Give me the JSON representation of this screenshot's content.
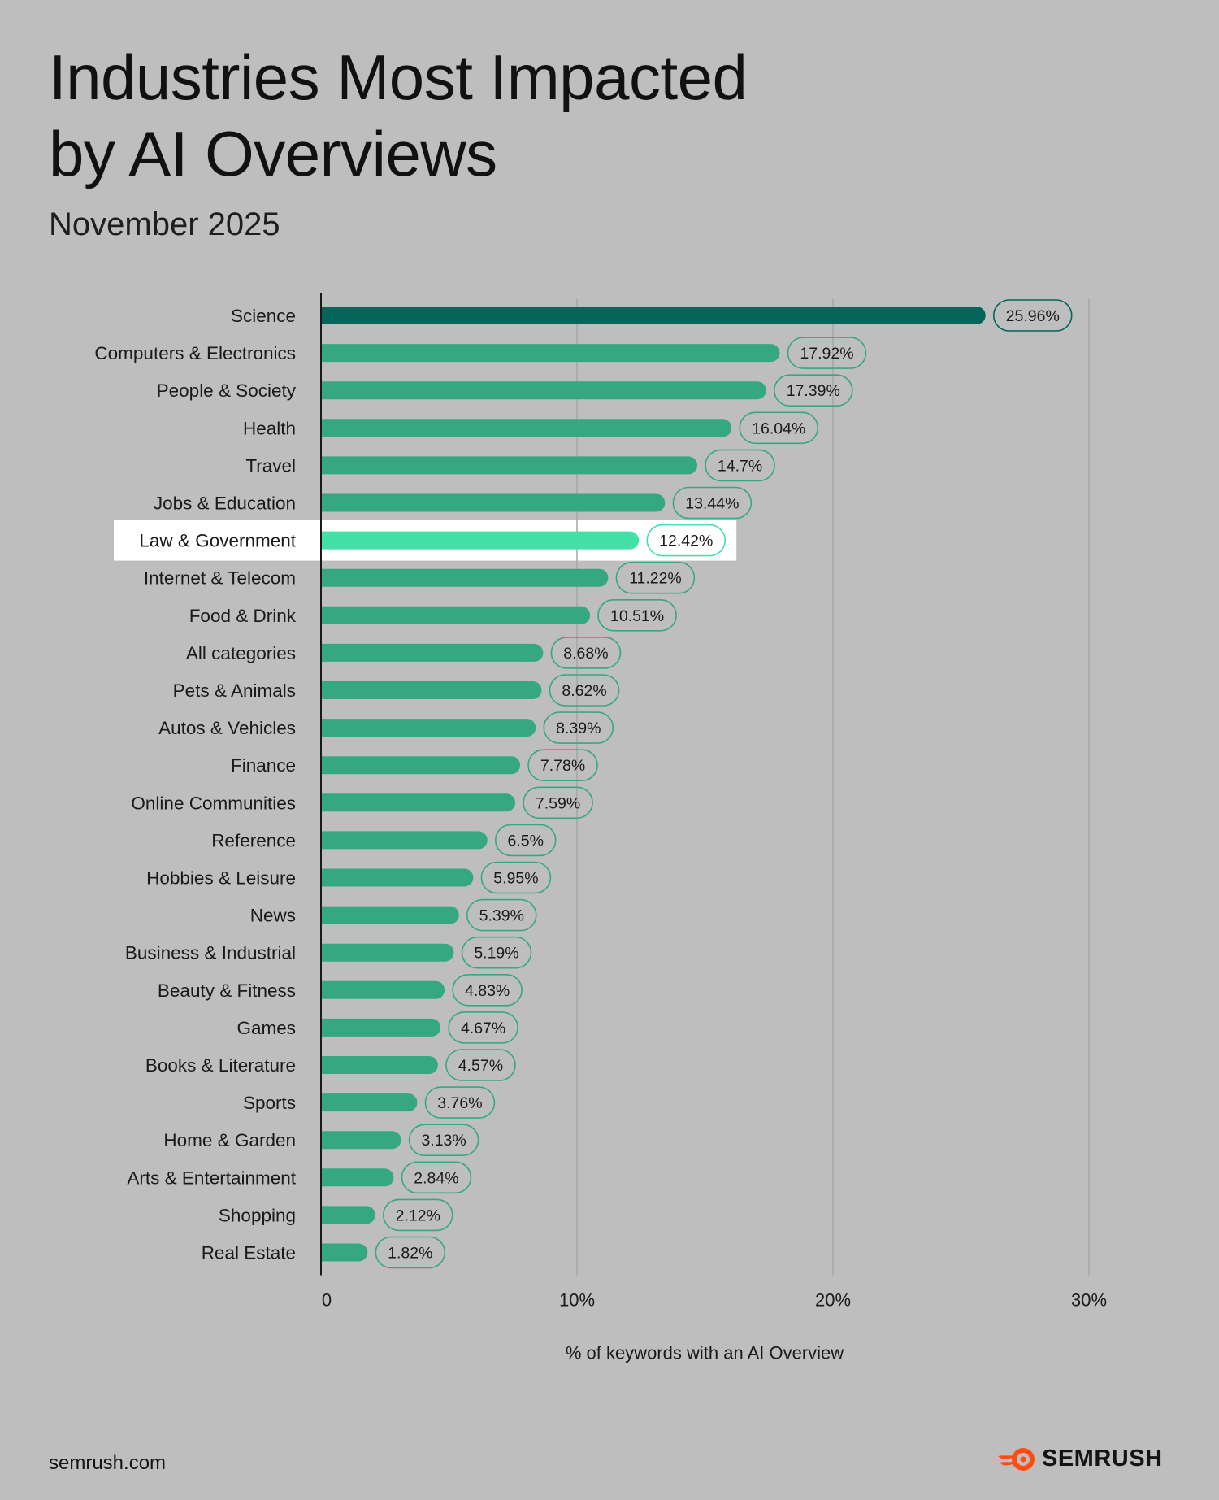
{
  "header": {
    "title_line1": "Industries Most Impacted",
    "title_line2": "by AI Overviews",
    "subtitle": "November 2025"
  },
  "footer": {
    "site": "semrush.com",
    "brand": "SEMRUSH",
    "logo_icon": "semrush-flame-icon"
  },
  "colors": {
    "background": "#bebebe",
    "bar_default": "#35a882",
    "bar_top": "#04665a",
    "bar_highlight": "#45dfa8",
    "highlight_band": "#ffffff",
    "gridline": "#a6a6a6",
    "axis": "#1a1a1a",
    "logo_orange": "#ff4d12"
  },
  "chart_data": {
    "type": "bar",
    "orientation": "horizontal",
    "categories": [
      "Science",
      "Computers & Electronics",
      "People & Society",
      "Health",
      "Travel",
      "Jobs & Education",
      "Law & Government",
      "Internet & Telecom",
      "Food & Drink",
      "All categories",
      "Pets & Animals",
      "Autos & Vehicles",
      "Finance",
      "Online Communities",
      "Reference",
      "Hobbies & Leisure",
      "News",
      "Business & Industrial",
      "Beauty & Fitness",
      "Games",
      "Books & Literature",
      "Sports",
      "Home & Garden",
      "Arts & Entertainment",
      "Shopping",
      "Real Estate"
    ],
    "values": [
      25.96,
      17.92,
      17.39,
      16.04,
      14.7,
      13.44,
      12.42,
      11.22,
      10.51,
      8.68,
      8.62,
      8.39,
      7.78,
      7.59,
      6.5,
      5.95,
      5.39,
      5.19,
      4.83,
      4.67,
      4.57,
      3.76,
      3.13,
      2.84,
      2.12,
      1.82
    ],
    "value_labels": [
      "25.96%",
      "17.92%",
      "17.39%",
      "16.04%",
      "14.7%",
      "13.44%",
      "12.42%",
      "11.22%",
      "10.51%",
      "8.68%",
      "8.62%",
      "8.39%",
      "7.78%",
      "7.59%",
      "6.5%",
      "5.95%",
      "5.39%",
      "5.19%",
      "4.83%",
      "4.67%",
      "4.57%",
      "3.76%",
      "3.13%",
      "2.84%",
      "2.12%",
      "1.82%"
    ],
    "highlight_category": "Law & Government",
    "top_category": "Science",
    "x_ticks": [
      0,
      10,
      20,
      30
    ],
    "x_tick_labels": [
      "0",
      "10%",
      "20%",
      "30%"
    ],
    "xlim": [
      0,
      30
    ],
    "xlabel": "% of keywords with an AI Overview",
    "grid": "vertical gridlines at 10%, 20%, 30%",
    "legend": "none"
  }
}
